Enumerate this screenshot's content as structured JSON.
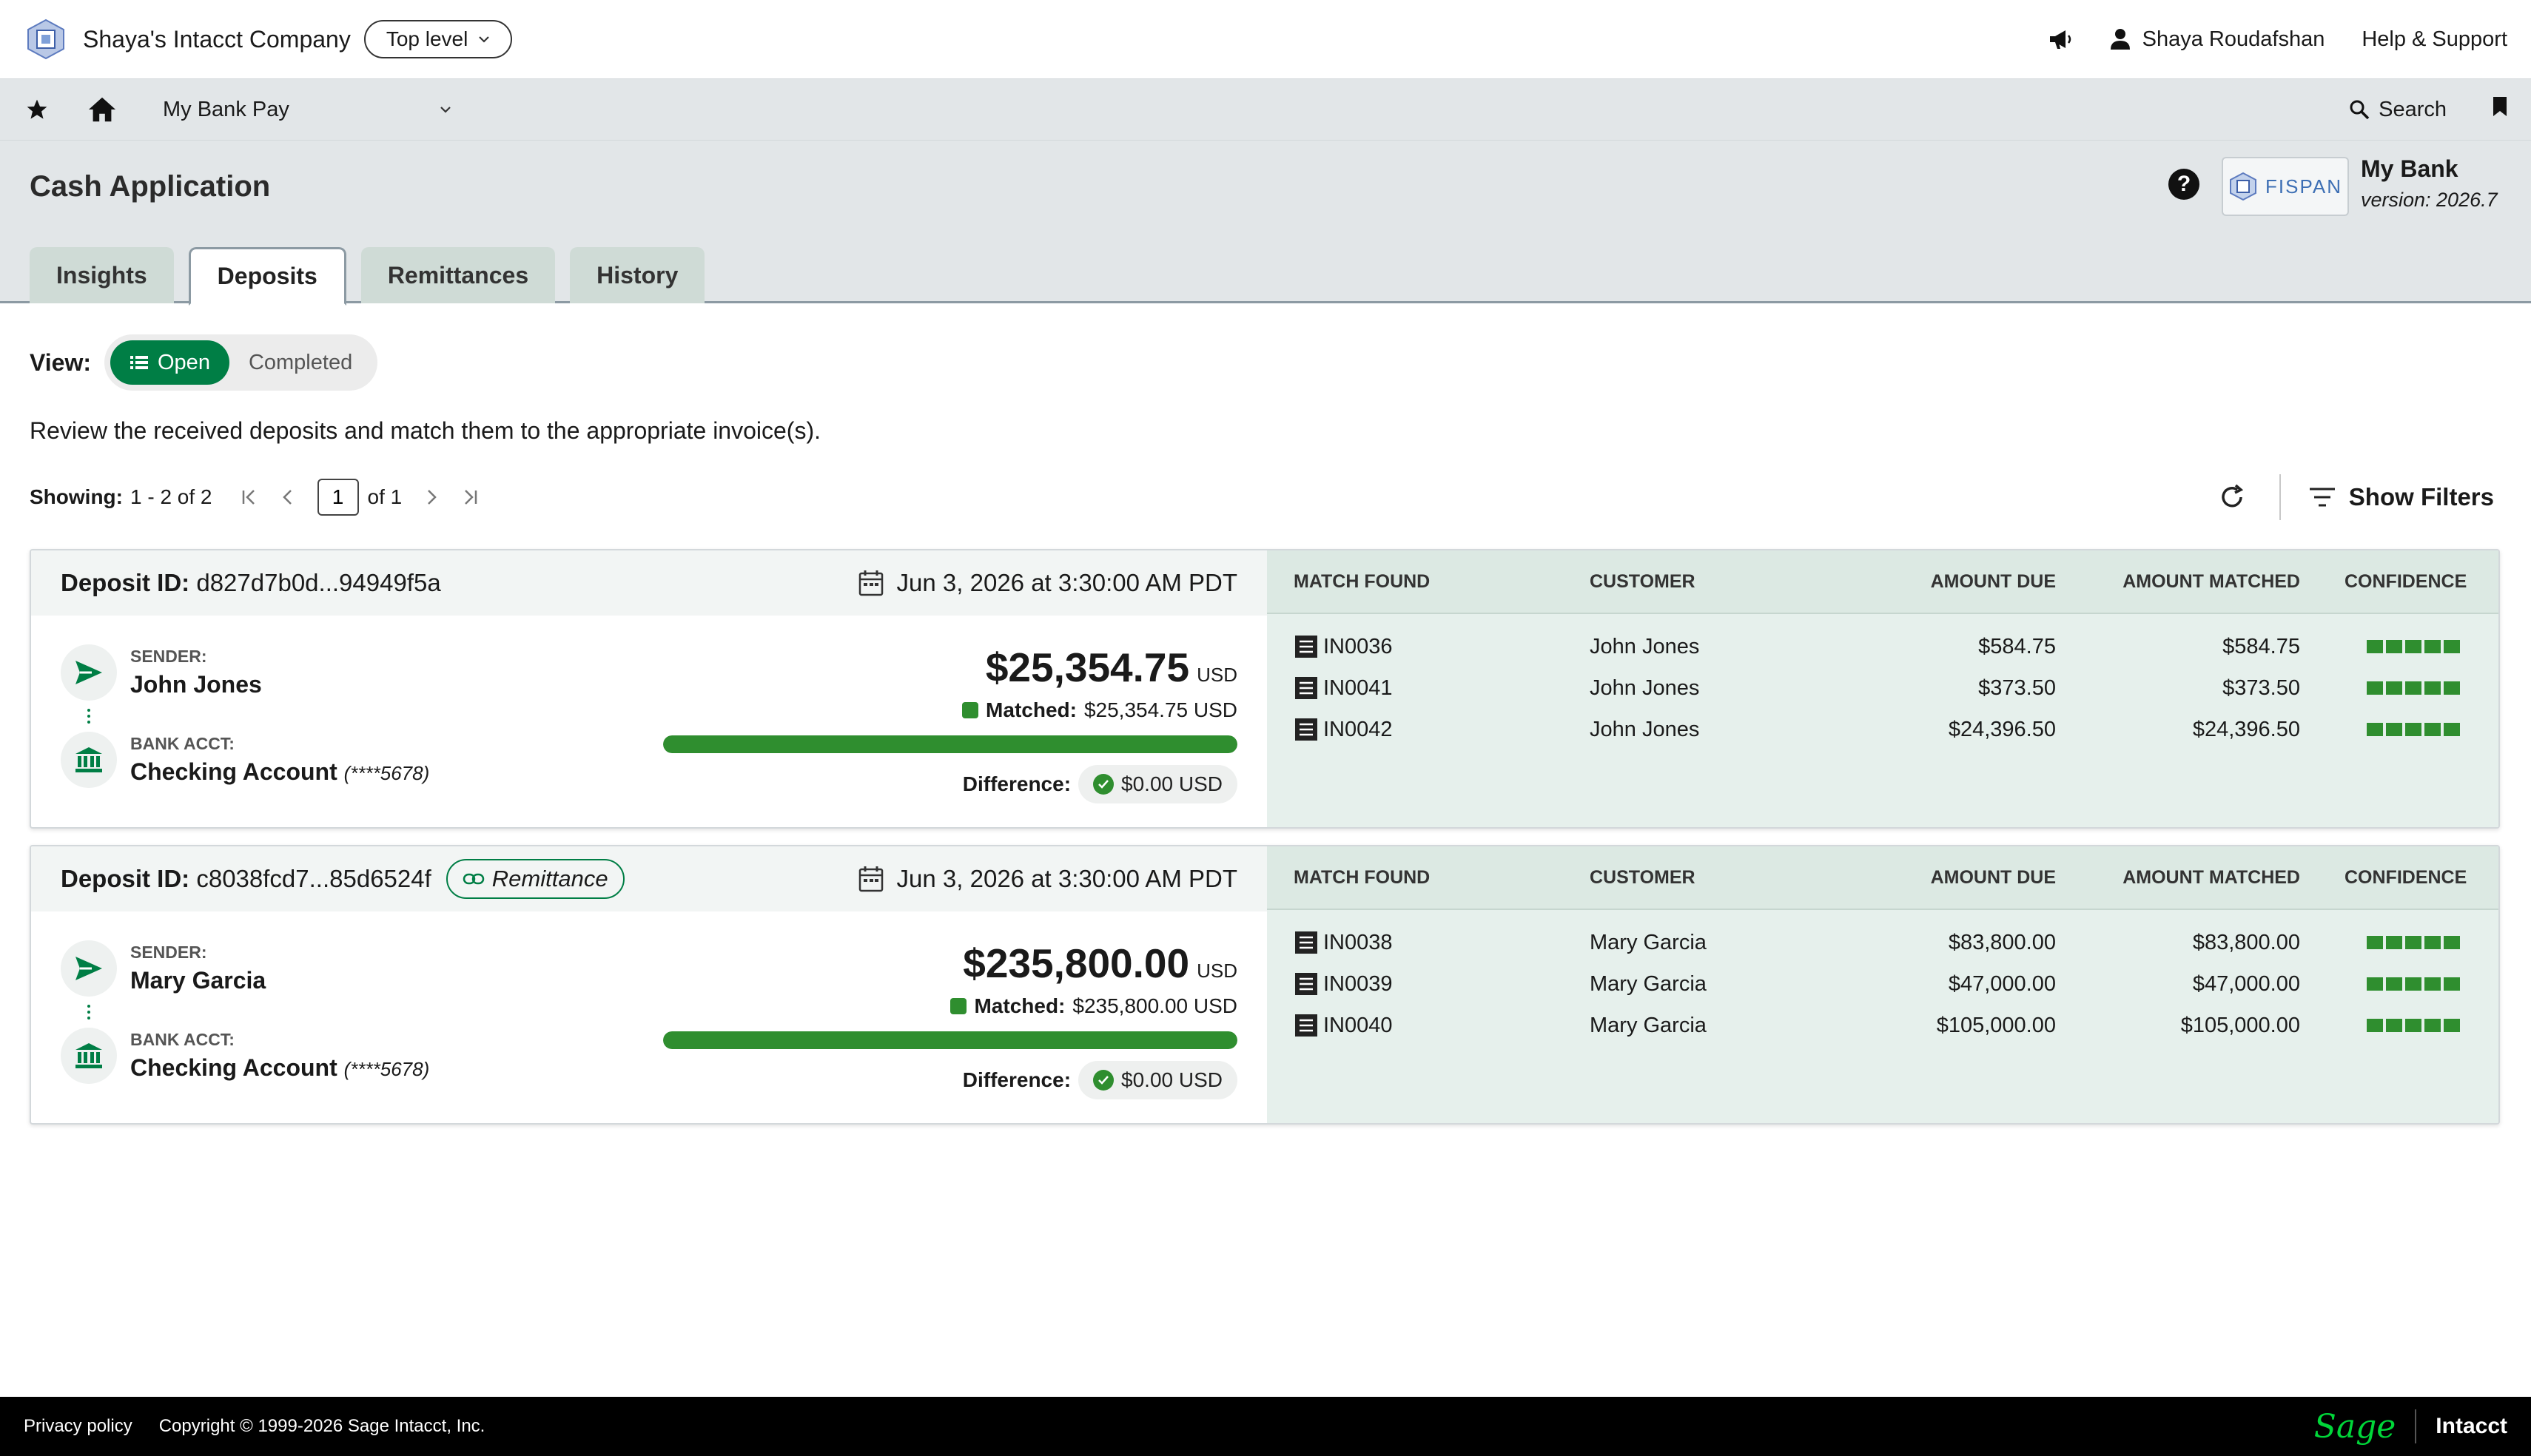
{
  "topbar": {
    "company_name": "Shaya's Intacct Company",
    "level_pill": "Top level",
    "user_name": "Shaya Roudafshan",
    "help_support": "Help & Support"
  },
  "navbar": {
    "app_title": "My Bank Pay",
    "search_label": "Search"
  },
  "page": {
    "title": "Cash Application",
    "help_glyph": "?",
    "bank_name": "My Bank",
    "bank_version": "version: 2026.7",
    "partner_logo_text": "FISPAN"
  },
  "tabs": [
    {
      "label": "Insights",
      "active": false
    },
    {
      "label": "Deposits",
      "active": true
    },
    {
      "label": "Remittances",
      "active": false
    },
    {
      "label": "History",
      "active": false
    }
  ],
  "view": {
    "label": "View:",
    "options": [
      "Open",
      "Completed"
    ],
    "selected": "Open"
  },
  "intro_text": "Review the received deposits and match them to the appropriate invoice(s).",
  "pager": {
    "showing_label": "Showing:",
    "showing_range": "1 - 2 of 2",
    "current_page": "1",
    "of_pages": "of 1"
  },
  "toolbar": {
    "show_filters": "Show Filters"
  },
  "columns": {
    "match_found": "MATCH FOUND",
    "customer": "CUSTOMER",
    "amount_due": "AMOUNT DUE",
    "amount_matched": "AMOUNT MATCHED",
    "confidence": "CONFIDENCE"
  },
  "labels": {
    "deposit_id": "Deposit ID:",
    "sender": "SENDER:",
    "bank_acct": "BANK ACCT:",
    "matched": "Matched:",
    "difference": "Difference:",
    "currency": "USD"
  },
  "deposits": [
    {
      "id": "d827d7b0d...94949f5a",
      "remittance_tag": "",
      "date": "Jun 3, 2026 at 3:30:00 AM PDT",
      "sender": "John Jones",
      "account": "Checking Account",
      "account_mask": "(****5678)",
      "amount": "$25,354.75",
      "matched": "$25,354.75 USD",
      "matched_fraction": 1.0,
      "difference": "$0.00 USD",
      "matches": [
        {
          "invoice": "IN0036",
          "customer": "John Jones",
          "amount_due": "$584.75",
          "amount_matched": "$584.75",
          "confidence": 5
        },
        {
          "invoice": "IN0041",
          "customer": "John Jones",
          "amount_due": "$373.50",
          "amount_matched": "$373.50",
          "confidence": 5
        },
        {
          "invoice": "IN0042",
          "customer": "John Jones",
          "amount_due": "$24,396.50",
          "amount_matched": "$24,396.50",
          "confidence": 5
        }
      ]
    },
    {
      "id": "c8038fcd7...85d6524f",
      "remittance_tag": "Remittance",
      "date": "Jun 3, 2026 at 3:30:00 AM PDT",
      "sender": "Mary Garcia",
      "account": "Checking Account",
      "account_mask": "(****5678)",
      "amount": "$235,800.00",
      "matched": "$235,800.00 USD",
      "matched_fraction": 1.0,
      "difference": "$0.00 USD",
      "matches": [
        {
          "invoice": "IN0038",
          "customer": "Mary Garcia",
          "amount_due": "$83,800.00",
          "amount_matched": "$83,800.00",
          "confidence": 5
        },
        {
          "invoice": "IN0039",
          "customer": "Mary Garcia",
          "amount_due": "$47,000.00",
          "amount_matched": "$47,000.00",
          "confidence": 5
        },
        {
          "invoice": "IN0040",
          "customer": "Mary Garcia",
          "amount_due": "$105,000.00",
          "amount_matched": "$105,000.00",
          "confidence": 5
        }
      ]
    }
  ],
  "footer": {
    "privacy": "Privacy policy",
    "copyright": "Copyright © 1999-2026 Sage Intacct, Inc.",
    "brand_sage": "Sage",
    "brand_intacct": "Intacct"
  },
  "colors": {
    "brand_green": "#007e45",
    "progress_green": "#2f8e2f",
    "match_panel_bg": "#e6f0ec",
    "nav_bg": "#e2e6e8",
    "footer_bg": "#000000"
  },
  "icons": {
    "company": "company-logo-icon",
    "announce": "megaphone-icon",
    "user": "user-icon",
    "favorite": "star-icon",
    "home": "home-icon",
    "search": "search-icon",
    "bookmark": "bookmark-icon",
    "calendar": "calendar-icon",
    "sender": "send-icon",
    "bank": "bank-icon",
    "invoice": "invoice-icon",
    "refresh": "refresh-icon",
    "filter": "filter-icon",
    "check": "check-circle-icon",
    "link": "link-icon"
  }
}
